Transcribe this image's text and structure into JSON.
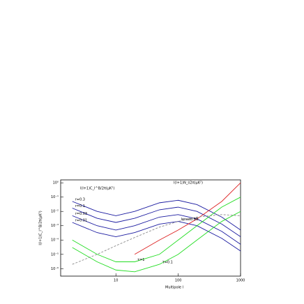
{
  "chart_data": {
    "type": "line",
    "subtitle": "l(l+1)C_l^B/2π(μK²)",
    "x_label": "Multipole l",
    "y_label": "l(l+1)C_l^B/2π(μK²)",
    "x_scale": "log",
    "y_scale": "log",
    "x": [
      2,
      5,
      10,
      20,
      50,
      100,
      200,
      500,
      1000
    ],
    "xlim": [
      1.3,
      1000
    ],
    "ylim": [
      3e-07,
      1.6
    ],
    "xticks": [
      10,
      100,
      1000
    ],
    "yticks": [
      {
        "value": 1,
        "label": "10⁰"
      },
      {
        "value": 0.1,
        "label": "10⁻¹"
      },
      {
        "value": 0.01,
        "label": "10⁻²"
      },
      {
        "value": 0.001,
        "label": "10⁻³"
      },
      {
        "value": 0.0001,
        "label": "10⁻⁴"
      },
      {
        "value": 1e-05,
        "label": "10⁻⁵"
      },
      {
        "value": 1e-06,
        "label": "10⁻⁶"
      }
    ],
    "series": [
      {
        "name": "r=0.3",
        "color": "#1a1aa0",
        "values": [
          0.05,
          0.01,
          0.005,
          0.01,
          0.04,
          0.06,
          0.03,
          0.004,
          0.0005
        ]
      },
      {
        "name": "r=0.1",
        "color": "#1a1aa0",
        "values": [
          0.017,
          0.0033,
          0.0017,
          0.0033,
          0.013,
          0.02,
          0.01,
          0.0013,
          0.00017
        ]
      },
      {
        "name": "r=0.03",
        "color": "#1a1aa0",
        "values": [
          0.005,
          0.001,
          0.0005,
          0.001,
          0.004,
          0.006,
          0.003,
          0.0004,
          5e-05
        ]
      },
      {
        "name": "r=0.01",
        "color": "#1a1aa0",
        "values": [
          0.0017,
          0.00033,
          0.00017,
          0.00033,
          0.0013,
          0.002,
          0.001,
          0.00013,
          1.7e-05
        ]
      },
      {
        "name": "τ=1",
        "color": "#22dd22",
        "values": [
          0.0001,
          1e-05,
          3e-06,
          3e-06,
          1e-05,
          0.0001,
          0.001,
          0.02,
          0.1
        ]
      },
      {
        "name": "τ=0.1",
        "color": "#22dd22",
        "values": [
          3e-05,
          3e-06,
          8e-07,
          6e-07,
          2e-06,
          1e-05,
          0.0001,
          0.002,
          0.01
        ]
      },
      {
        "name": "l(l+1)N_l/2π(μK²)",
        "color": "#dd2222",
        "values": [
          null,
          null,
          null,
          1e-05,
          0.0001,
          0.0005,
          0.003,
          0.05,
          1
        ]
      },
      {
        "name": "lensed BB",
        "color": "#888888",
        "dashed": true,
        "values": [
          2e-06,
          1e-05,
          4e-05,
          0.00015,
          0.0008,
          0.002,
          0.004,
          0.006,
          0.005
        ]
      }
    ]
  }
}
